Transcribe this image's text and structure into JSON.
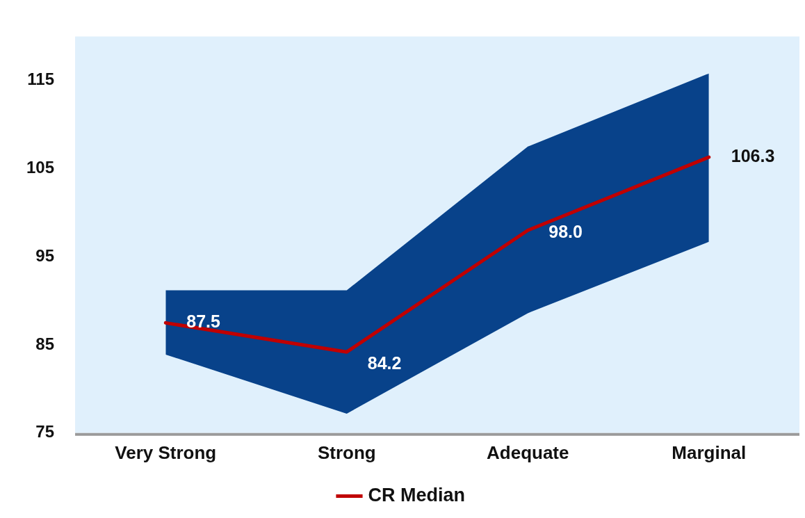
{
  "chart_data": {
    "type": "line",
    "categories": [
      "Very Strong",
      "Strong",
      "Adequate",
      "Marginal"
    ],
    "series": [
      {
        "name": "CR Median",
        "color": "#c00000",
        "values": [
          87.5,
          84.2,
          98.0,
          106.3
        ],
        "value_labels": [
          "87.5",
          "84.2",
          "98.0",
          "106.3"
        ],
        "lower": [
          83.9,
          77.2,
          88.6,
          96.7
        ],
        "upper": [
          91.2,
          91.2,
          107.5,
          115.8
        ]
      }
    ],
    "ylim": [
      75,
      120
    ],
    "yticks": [
      75,
      85,
      95,
      105,
      115
    ],
    "grid": false,
    "legend": "bottom",
    "marker": "none",
    "line_style": "solid"
  }
}
